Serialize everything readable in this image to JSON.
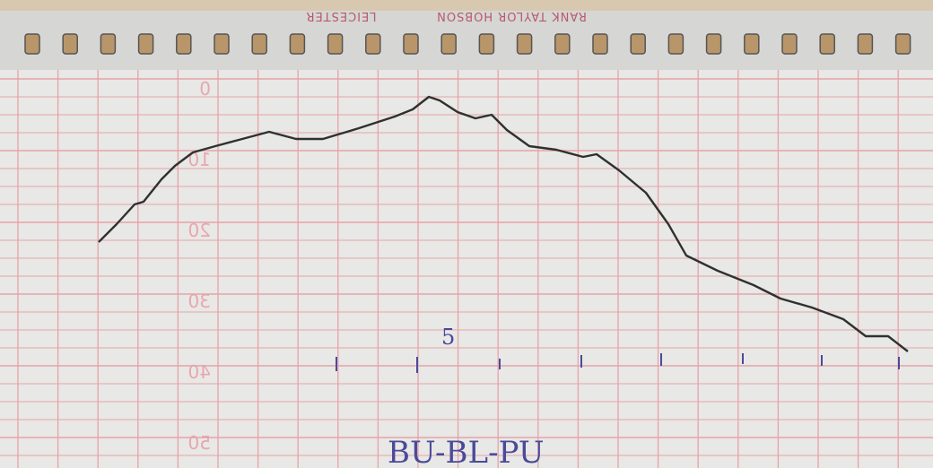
{
  "header": {
    "maker": "RANK  TAYLOR  HOBSON",
    "place": "LEICESTER"
  },
  "scale_labels": [
    "0",
    "10",
    "20",
    "30",
    "40",
    "50"
  ],
  "annotations": {
    "mark": "5",
    "caption": "BU-BL-PU"
  }
}
